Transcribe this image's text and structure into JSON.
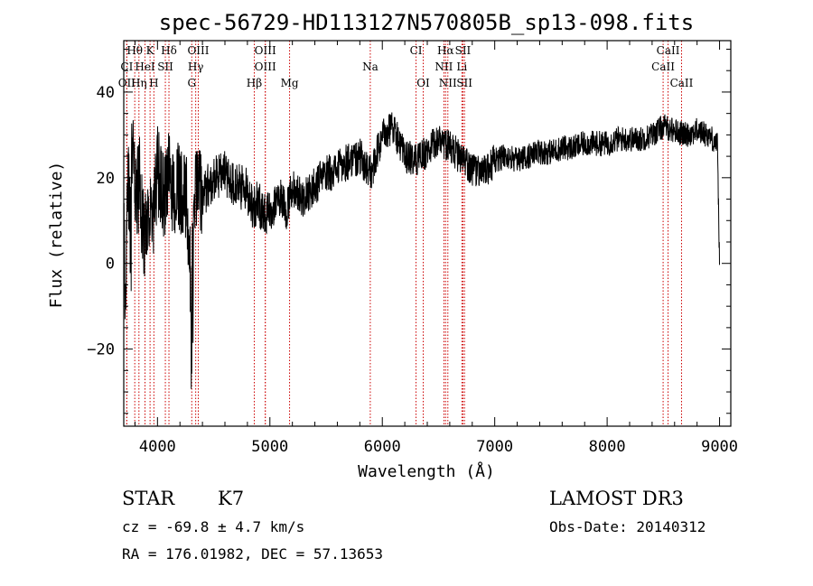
{
  "header": {
    "title": "spec-56729-HD113127N570805B_sp13-098.fits"
  },
  "info": {
    "object_class": "STAR",
    "subclass": "K7",
    "survey": "LAMOST DR3",
    "redshift_text": "cz = -69.8 ± 4.7 km/s",
    "obs_date": "Obs-Date: 20140312",
    "coords": "RA = 176.01982, DEC =  57.13653"
  },
  "chart_data": {
    "type": "line",
    "title": "spec-56729-HD113127N570805B_sp13-098.fits",
    "xlabel": "Wavelength (Å)",
    "ylabel": "Flux (relative)",
    "xlim": [
      3700,
      9100
    ],
    "ylim": [
      -38,
      52
    ],
    "xticks": [
      4000,
      5000,
      6000,
      7000,
      8000,
      9000
    ],
    "yticks": [
      -20,
      0,
      20,
      40
    ],
    "grid": false,
    "line_color": "#000000",
    "marker_color": "#cc0000",
    "spectrum_anchors": [
      [
        3700,
        5
      ],
      [
        3720,
        -2
      ],
      [
        3740,
        28
      ],
      [
        3760,
        5
      ],
      [
        3780,
        38
      ],
      [
        3800,
        12
      ],
      [
        3840,
        20
      ],
      [
        3880,
        5
      ],
      [
        3920,
        14
      ],
      [
        3960,
        8
      ],
      [
        4000,
        22
      ],
      [
        4050,
        15
      ],
      [
        4100,
        20
      ],
      [
        4150,
        16
      ],
      [
        4200,
        18
      ],
      [
        4260,
        14
      ],
      [
        4300,
        -8
      ],
      [
        4340,
        18
      ],
      [
        4400,
        16
      ],
      [
        4500,
        20
      ],
      [
        4600,
        21
      ],
      [
        4700,
        18
      ],
      [
        4800,
        17
      ],
      [
        4850,
        13
      ],
      [
        4900,
        14
      ],
      [
        4950,
        12
      ],
      [
        5000,
        11
      ],
      [
        5050,
        14
      ],
      [
        5100,
        16
      ],
      [
        5150,
        12
      ],
      [
        5200,
        18
      ],
      [
        5300,
        15
      ],
      [
        5400,
        18
      ],
      [
        5500,
        21
      ],
      [
        5600,
        22
      ],
      [
        5700,
        24
      ],
      [
        5800,
        25
      ],
      [
        5890,
        21
      ],
      [
        5920,
        22
      ],
      [
        6000,
        30
      ],
      [
        6050,
        31
      ],
      [
        6100,
        32
      ],
      [
        6150,
        28
      ],
      [
        6200,
        25
      ],
      [
        6300,
        24
      ],
      [
        6400,
        26
      ],
      [
        6500,
        29
      ],
      [
        6560,
        28
      ],
      [
        6650,
        26
      ],
      [
        6700,
        24
      ],
      [
        6800,
        22
      ],
      [
        6900,
        21
      ],
      [
        7000,
        24
      ],
      [
        7100,
        25
      ],
      [
        7200,
        24
      ],
      [
        7300,
        25
      ],
      [
        7400,
        26
      ],
      [
        7500,
        26
      ],
      [
        7600,
        27
      ],
      [
        7700,
        27
      ],
      [
        7800,
        28
      ],
      [
        7900,
        28
      ],
      [
        8000,
        28
      ],
      [
        8100,
        29
      ],
      [
        8200,
        29
      ],
      [
        8300,
        29
      ],
      [
        8400,
        30
      ],
      [
        8500,
        32
      ],
      [
        8600,
        31
      ],
      [
        8700,
        30
      ],
      [
        8800,
        31
      ],
      [
        8900,
        30
      ],
      [
        8980,
        28
      ],
      [
        9000,
        0
      ]
    ],
    "spectral_lines": [
      {
        "label": "Hθ",
        "wavelength": 3798,
        "row": 0
      },
      {
        "label": "K",
        "wavelength": 3934,
        "row": 0
      },
      {
        "label": "Hδ",
        "wavelength": 4102,
        "row": 0
      },
      {
        "label": "OIII",
        "wavelength": 4363,
        "row": 0
      },
      {
        "label": "OIII",
        "wavelength": 4959,
        "row": 0
      },
      {
        "label": "CI",
        "wavelength": 6300,
        "row": 0
      },
      {
        "label": "Hα",
        "wavelength": 6563,
        "row": 0
      },
      {
        "label": "SII",
        "wavelength": 6717,
        "row": 0
      },
      {
        "label": "CaII",
        "wavelength": 8542,
        "row": 0
      },
      {
        "label": "CI",
        "wavelength": 3727,
        "row": 1
      },
      {
        "label": "HeI",
        "wavelength": 3889,
        "row": 1
      },
      {
        "label": "SII",
        "wavelength": 4070,
        "row": 1
      },
      {
        "label": "Hγ",
        "wavelength": 4340,
        "row": 1
      },
      {
        "label": "OIII",
        "wavelength": 4959,
        "row": 1
      },
      {
        "label": "Na",
        "wavelength": 5893,
        "row": 1
      },
      {
        "label": "NII",
        "wavelength": 6548,
        "row": 1
      },
      {
        "label": "Li",
        "wavelength": 6708,
        "row": 1
      },
      {
        "label": "CaII",
        "wavelength": 8498,
        "row": 1
      },
      {
        "label": "OII",
        "wavelength": 3727,
        "row": 2
      },
      {
        "label": "Hη",
        "wavelength": 3835,
        "row": 2
      },
      {
        "label": "H",
        "wavelength": 3968,
        "row": 2
      },
      {
        "label": "G",
        "wavelength": 4305,
        "row": 2
      },
      {
        "label": "Hβ",
        "wavelength": 4861,
        "row": 2
      },
      {
        "label": "Mg",
        "wavelength": 5175,
        "row": 2
      },
      {
        "label": "OI",
        "wavelength": 6364,
        "row": 2
      },
      {
        "label": "NII",
        "wavelength": 6583,
        "row": 2
      },
      {
        "label": "SII",
        "wavelength": 6731,
        "row": 2
      },
      {
        "label": "CaII",
        "wavelength": 8662,
        "row": 2
      }
    ]
  }
}
